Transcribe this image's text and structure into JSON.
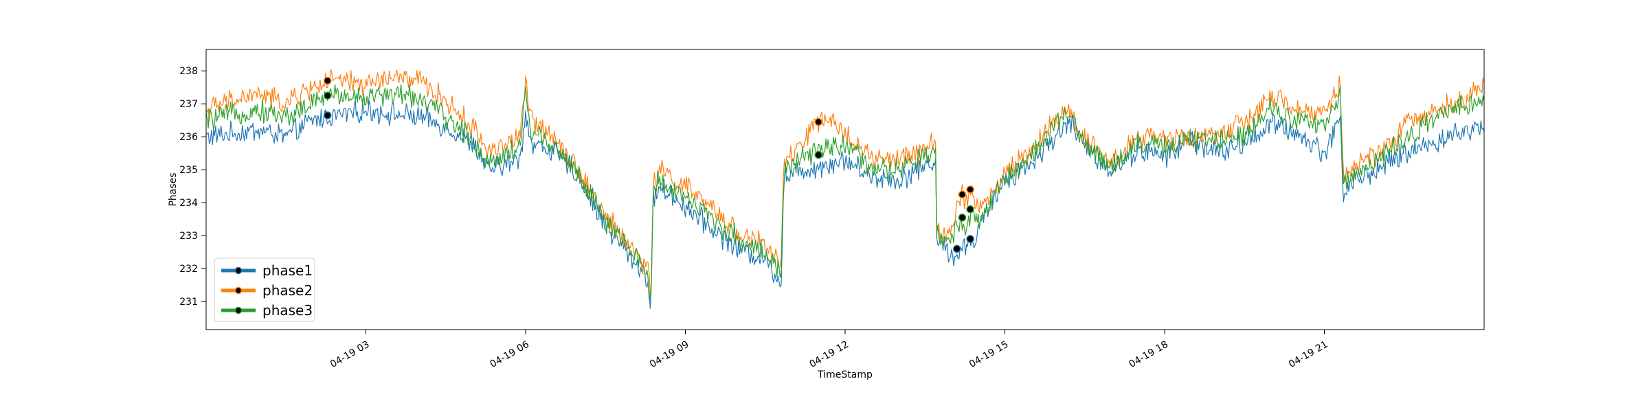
{
  "chart_data": {
    "type": "line",
    "title": "",
    "xlabel": "TimeStamp",
    "ylabel": "Phases",
    "x_axis_kind": "datetime",
    "x_range_hours": [
      0.0,
      24.0
    ],
    "x_ticks": [
      {
        "value_hours": 3,
        "label": "04-19 03"
      },
      {
        "value_hours": 6,
        "label": "04-19 06"
      },
      {
        "value_hours": 9,
        "label": "04-19 09"
      },
      {
        "value_hours": 12,
        "label": "04-19 12"
      },
      {
        "value_hours": 15,
        "label": "04-19 15"
      },
      {
        "value_hours": 18,
        "label": "04-19 18"
      },
      {
        "value_hours": 21,
        "label": "04-19 21"
      }
    ],
    "ylim": [
      230.15,
      238.65
    ],
    "y_ticks": [
      231,
      232,
      233,
      234,
      235,
      236,
      237,
      238
    ],
    "grid": false,
    "legend_position": "lower-left",
    "series": [
      {
        "name": "phase1",
        "color": "#1f77b4",
        "x_hours": [
          0.0,
          0.5,
          1.0,
          1.5,
          2.0,
          2.3,
          3.0,
          3.5,
          4.0,
          4.5,
          5.0,
          5.3,
          5.5,
          5.9,
          6.0,
          6.1,
          6.5,
          7.0,
          7.5,
          8.0,
          8.3,
          8.35,
          8.4,
          8.5,
          9.0,
          9.5,
          10.0,
          10.5,
          10.8,
          10.85,
          11.0,
          11.5,
          12.0,
          12.5,
          13.0,
          13.5,
          13.7,
          13.72,
          13.9,
          14.0,
          14.2,
          14.3,
          14.4,
          14.5,
          14.7,
          15.0,
          15.5,
          16.0,
          16.2,
          16.5,
          17.0,
          17.5,
          18.0,
          18.5,
          19.0,
          19.5,
          20.0,
          20.5,
          21.0,
          21.3,
          21.35,
          21.5,
          22.0,
          22.5,
          23.0,
          23.5,
          24.0
        ],
        "y": [
          236.0,
          236.1,
          236.2,
          236.0,
          236.5,
          236.6,
          236.8,
          236.7,
          236.6,
          236.3,
          235.8,
          235.0,
          235.1,
          235.3,
          236.8,
          235.8,
          235.6,
          234.8,
          233.3,
          232.3,
          231.7,
          230.6,
          234.1,
          234.5,
          233.9,
          233.2,
          232.6,
          232.3,
          231.6,
          234.8,
          234.9,
          235.1,
          235.3,
          234.8,
          234.7,
          235.1,
          235.3,
          232.9,
          232.6,
          232.4,
          232.5,
          232.9,
          232.7,
          233.2,
          233.8,
          234.7,
          235.2,
          236.1,
          236.5,
          235.7,
          235.0,
          235.6,
          235.4,
          235.9,
          235.5,
          235.8,
          236.4,
          236.1,
          235.5,
          236.6,
          234.3,
          234.6,
          235.0,
          235.5,
          235.8,
          236.1,
          236.3
        ],
        "markers": [
          {
            "x_hours": 2.28,
            "y": 236.65
          },
          {
            "x_hours": 14.1,
            "y": 232.6
          },
          {
            "x_hours": 14.35,
            "y": 232.9
          }
        ]
      },
      {
        "name": "phase2",
        "color": "#ff7f0e",
        "x_hours": [
          0.0,
          0.5,
          1.0,
          1.5,
          2.0,
          2.3,
          3.0,
          3.5,
          4.0,
          4.5,
          5.0,
          5.3,
          5.5,
          5.9,
          6.0,
          6.1,
          6.5,
          7.0,
          7.5,
          8.0,
          8.3,
          8.35,
          8.4,
          8.5,
          9.0,
          9.5,
          10.0,
          10.5,
          10.8,
          10.85,
          11.0,
          11.5,
          12.0,
          12.5,
          13.0,
          13.5,
          13.7,
          13.72,
          13.9,
          14.0,
          14.2,
          14.3,
          14.4,
          14.5,
          14.7,
          15.0,
          15.5,
          16.0,
          16.2,
          16.5,
          17.0,
          17.5,
          18.0,
          18.5,
          19.0,
          19.5,
          20.0,
          20.5,
          21.0,
          21.3,
          21.35,
          21.5,
          22.0,
          22.5,
          23.0,
          23.5,
          24.0
        ],
        "y": [
          236.8,
          237.1,
          237.3,
          237.0,
          237.5,
          237.7,
          237.6,
          237.8,
          237.7,
          237.1,
          236.3,
          235.6,
          235.7,
          236.0,
          237.7,
          236.5,
          236.1,
          235.0,
          233.6,
          232.6,
          232.0,
          231.0,
          234.5,
          235.0,
          234.5,
          233.8,
          233.1,
          232.7,
          232.1,
          235.2,
          235.4,
          236.5,
          236.2,
          235.3,
          235.3,
          235.6,
          235.9,
          233.2,
          233.0,
          233.2,
          234.3,
          234.0,
          234.4,
          233.8,
          234.1,
          234.9,
          235.6,
          236.6,
          236.8,
          236.0,
          235.2,
          236.0,
          235.9,
          236.0,
          236.1,
          236.4,
          237.2,
          236.8,
          236.7,
          237.6,
          234.9,
          235.0,
          235.5,
          236.3,
          236.8,
          237.1,
          237.5
        ],
        "markers": [
          {
            "x_hours": 2.28,
            "y": 237.7
          },
          {
            "x_hours": 11.5,
            "y": 236.45
          },
          {
            "x_hours": 14.2,
            "y": 234.25
          },
          {
            "x_hours": 14.35,
            "y": 234.4
          }
        ]
      },
      {
        "name": "phase3",
        "color": "#2ca02c",
        "x_hours": [
          0.0,
          0.5,
          1.0,
          1.5,
          2.0,
          2.3,
          3.0,
          3.5,
          4.0,
          4.5,
          5.0,
          5.3,
          5.5,
          5.9,
          6.0,
          6.1,
          6.5,
          7.0,
          7.5,
          8.0,
          8.3,
          8.35,
          8.4,
          8.5,
          9.0,
          9.5,
          10.0,
          10.5,
          10.8,
          10.85,
          11.0,
          11.5,
          12.0,
          12.5,
          13.0,
          13.5,
          13.7,
          13.72,
          13.9,
          14.0,
          14.2,
          14.3,
          14.4,
          14.5,
          14.7,
          15.0,
          15.5,
          16.0,
          16.2,
          16.5,
          17.0,
          17.5,
          18.0,
          18.5,
          19.0,
          19.5,
          20.0,
          20.5,
          21.0,
          21.3,
          21.35,
          21.5,
          22.0,
          22.5,
          23.0,
          23.5,
          24.0
        ],
        "y": [
          236.5,
          236.7,
          236.8,
          236.6,
          237.0,
          237.3,
          237.2,
          237.3,
          237.2,
          236.6,
          235.9,
          235.2,
          235.4,
          235.7,
          237.5,
          236.1,
          235.8,
          234.9,
          233.4,
          232.5,
          231.8,
          230.8,
          234.3,
          234.7,
          234.2,
          233.5,
          232.9,
          232.5,
          231.9,
          235.0,
          235.1,
          235.6,
          235.8,
          235.0,
          235.0,
          235.4,
          235.6,
          233.0,
          232.8,
          233.0,
          233.5,
          233.3,
          233.8,
          233.4,
          233.9,
          234.8,
          235.4,
          236.4,
          236.7,
          235.8,
          235.1,
          235.8,
          235.7,
          235.9,
          235.9,
          236.1,
          236.9,
          236.5,
          236.3,
          237.3,
          234.7,
          234.8,
          235.3,
          235.9,
          236.5,
          236.8,
          237.2
        ],
        "markers": [
          {
            "x_hours": 2.28,
            "y": 237.25
          },
          {
            "x_hours": 11.5,
            "y": 235.45
          },
          {
            "x_hours": 14.2,
            "y": 233.55
          },
          {
            "x_hours": 14.35,
            "y": 233.8
          }
        ]
      }
    ]
  }
}
